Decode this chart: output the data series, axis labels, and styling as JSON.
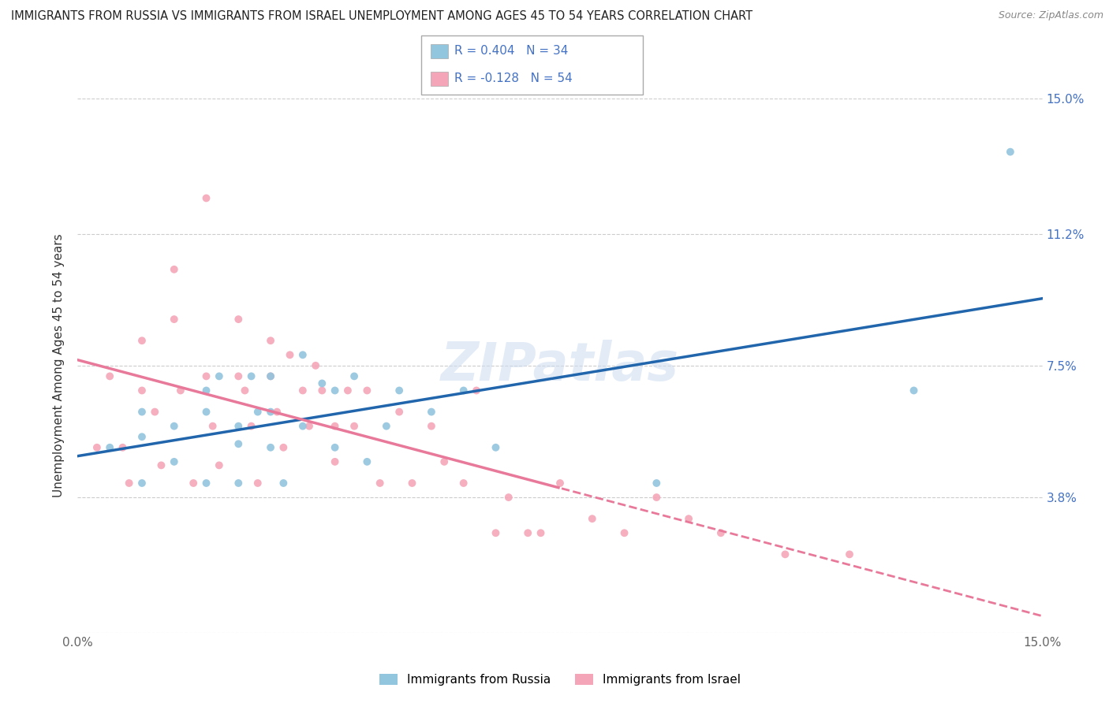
{
  "title": "IMMIGRANTS FROM RUSSIA VS IMMIGRANTS FROM ISRAEL UNEMPLOYMENT AMONG AGES 45 TO 54 YEARS CORRELATION CHART",
  "source": "Source: ZipAtlas.com",
  "ylabel": "Unemployment Among Ages 45 to 54 years",
  "xlim": [
    0.0,
    0.15
  ],
  "ylim": [
    0.0,
    0.15
  ],
  "russia_color": "#92c5de",
  "israel_color": "#f4a6b8",
  "russia_line_color": "#2166ac",
  "israel_line_color": "#e8799a",
  "legend_R_russia": "R = 0.404",
  "legend_N_russia": "N = 34",
  "legend_R_israel": "R = -0.128",
  "legend_N_israel": "N = 54",
  "watermark": "ZIPatlas",
  "russia_scatter_x": [
    0.005,
    0.01,
    0.01,
    0.01,
    0.015,
    0.015,
    0.02,
    0.02,
    0.02,
    0.022,
    0.025,
    0.025,
    0.025,
    0.027,
    0.028,
    0.03,
    0.03,
    0.03,
    0.032,
    0.035,
    0.035,
    0.038,
    0.04,
    0.04,
    0.043,
    0.045,
    0.048,
    0.05,
    0.055,
    0.06,
    0.065,
    0.09,
    0.13,
    0.145
  ],
  "russia_scatter_y": [
    0.052,
    0.055,
    0.062,
    0.042,
    0.058,
    0.048,
    0.062,
    0.068,
    0.042,
    0.072,
    0.058,
    0.042,
    0.053,
    0.072,
    0.062,
    0.072,
    0.062,
    0.052,
    0.042,
    0.078,
    0.058,
    0.07,
    0.068,
    0.052,
    0.072,
    0.048,
    0.058,
    0.068,
    0.062,
    0.068,
    0.052,
    0.042,
    0.068,
    0.135
  ],
  "israel_scatter_x": [
    0.003,
    0.005,
    0.007,
    0.008,
    0.01,
    0.01,
    0.012,
    0.013,
    0.015,
    0.015,
    0.016,
    0.018,
    0.02,
    0.02,
    0.021,
    0.022,
    0.025,
    0.025,
    0.026,
    0.027,
    0.028,
    0.03,
    0.03,
    0.031,
    0.032,
    0.033,
    0.035,
    0.036,
    0.037,
    0.038,
    0.04,
    0.04,
    0.042,
    0.043,
    0.045,
    0.047,
    0.05,
    0.052,
    0.055,
    0.057,
    0.06,
    0.062,
    0.065,
    0.067,
    0.07,
    0.072,
    0.075,
    0.08,
    0.085,
    0.09,
    0.095,
    0.1,
    0.11,
    0.12
  ],
  "israel_scatter_y": [
    0.052,
    0.072,
    0.052,
    0.042,
    0.082,
    0.068,
    0.062,
    0.047,
    0.102,
    0.088,
    0.068,
    0.042,
    0.122,
    0.072,
    0.058,
    0.047,
    0.088,
    0.072,
    0.068,
    0.058,
    0.042,
    0.082,
    0.072,
    0.062,
    0.052,
    0.078,
    0.068,
    0.058,
    0.075,
    0.068,
    0.058,
    0.048,
    0.068,
    0.058,
    0.068,
    0.042,
    0.062,
    0.042,
    0.058,
    0.048,
    0.042,
    0.068,
    0.028,
    0.038,
    0.028,
    0.028,
    0.042,
    0.032,
    0.028,
    0.038,
    0.032,
    0.028,
    0.022,
    0.022
  ]
}
